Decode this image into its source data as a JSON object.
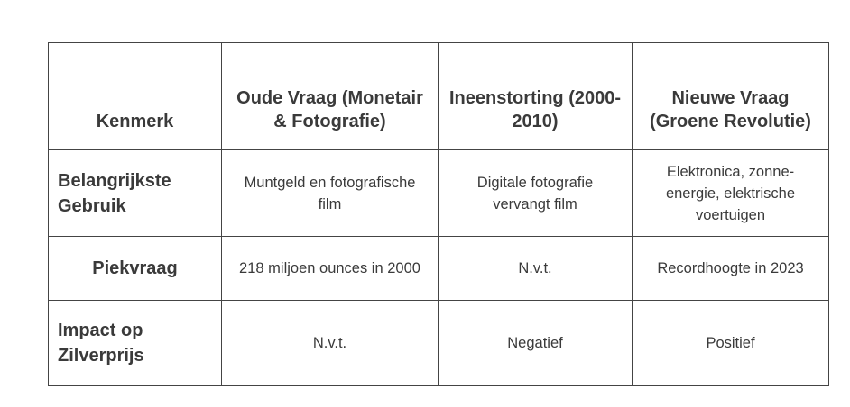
{
  "table": {
    "headers": [
      "Kenmerk",
      "Oude Vraag (Monetair & Fotografie)",
      "Ineenstorting (2000-2010)",
      "Nieuwe Vraag (Groene Revolutie)"
    ],
    "rows": [
      [
        "Belangrijkste Gebruik",
        "Muntgeld en fotografische film",
        "Digitale fotografie vervangt film",
        "Elektronica, zonne-energie, elektrische voertuigen"
      ],
      [
        "Piekvraag",
        "218 miljoen ounces in 2000",
        "N.v.t.",
        "Recordhoogte in 2023"
      ],
      [
        "Impact op Zilverprijs",
        "N.v.t.",
        "Negatief",
        "Positief"
      ]
    ]
  }
}
